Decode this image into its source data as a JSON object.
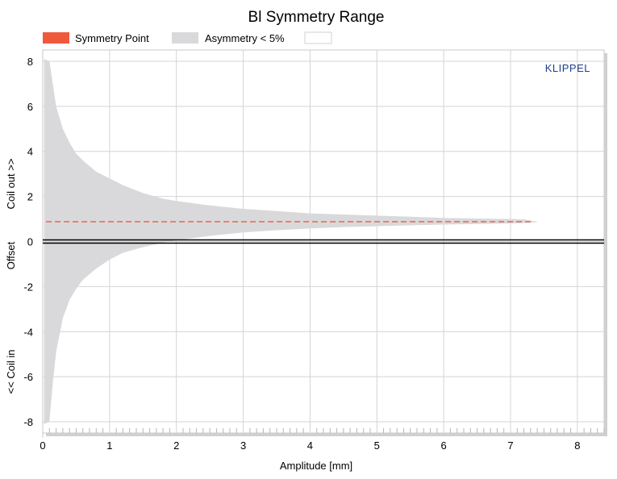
{
  "chart_data": {
    "type": "area",
    "title": "Bl Symmetry Range",
    "xlabel": "Amplitude [mm]",
    "ylabel_parts": [
      "<< Coil in",
      "Offset",
      "Coil out >>"
    ],
    "xlim": [
      0,
      8.4
    ],
    "ylim": [
      -8.5,
      8.5
    ],
    "x_ticks": [
      0,
      1,
      2,
      3,
      4,
      5,
      6,
      7,
      8
    ],
    "y_ticks": [
      8,
      6,
      4,
      2,
      0,
      -2,
      -4,
      -6,
      -8
    ],
    "grid": true,
    "legend_position": "top-left",
    "legend": [
      {
        "name": "Symmetry Point",
        "color": "#f05a3c"
      },
      {
        "name": "Asymmetry < 5%",
        "color": "#d9d9db"
      },
      {
        "name": "",
        "color": "#ffffff"
      }
    ],
    "brand_label": "KLIPPEL",
    "series": [
      {
        "name": "Asymmetry < 5%",
        "kind": "band",
        "x": [
          0.02,
          0.1,
          0.15,
          0.2,
          0.3,
          0.4,
          0.5,
          0.6,
          0.8,
          1.0,
          1.2,
          1.5,
          1.8,
          2.0,
          2.5,
          3.0,
          3.5,
          4.0,
          4.5,
          5.0,
          5.5,
          6.0,
          6.5,
          7.0,
          7.2,
          7.4
        ],
        "upper": [
          8.1,
          8.0,
          7.0,
          6.0,
          5.0,
          4.4,
          3.9,
          3.6,
          3.1,
          2.8,
          2.5,
          2.15,
          1.9,
          1.8,
          1.6,
          1.45,
          1.35,
          1.25,
          1.2,
          1.15,
          1.1,
          1.05,
          1.02,
          1.0,
          0.98,
          0.88
        ],
        "lower": [
          -8.1,
          -8.0,
          -6.3,
          -4.9,
          -3.4,
          -2.6,
          -2.1,
          -1.7,
          -1.2,
          -0.8,
          -0.5,
          -0.25,
          -0.05,
          0.05,
          0.25,
          0.4,
          0.5,
          0.58,
          0.64,
          0.68,
          0.72,
          0.75,
          0.78,
          0.8,
          0.82,
          0.86
        ]
      },
      {
        "name": "Symmetry Point",
        "kind": "line",
        "x": [
          0.05,
          7.3
        ],
        "y": [
          0.88,
          0.88
        ]
      },
      {
        "name": "",
        "kind": "hline",
        "x": [
          0,
          8.4
        ],
        "y": [
          0,
          0
        ]
      }
    ]
  }
}
